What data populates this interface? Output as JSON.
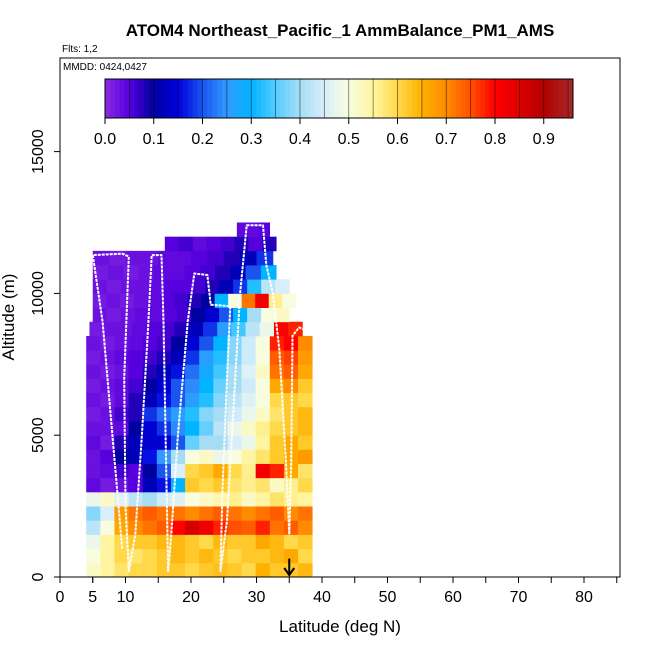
{
  "chart_data": {
    "type": "heatmap",
    "title": "ATOM4 Northeast_Pacific_1 AmmBalance_PM1_AMS",
    "flights_label": "Flts: 1,2",
    "mmdd_label": "MMDD: 0424,0427",
    "xlabel": "Latitude (deg N)",
    "ylabel": "Altitude (m)",
    "xlim": [
      0,
      85
    ],
    "ylim": [
      0,
      17500
    ],
    "x_ticks": [
      {
        "value": 0,
        "label": "0"
      },
      {
        "value": 5,
        "label": "5"
      },
      {
        "value": 10,
        "label": "10"
      },
      {
        "value": 20,
        "label": "20"
      },
      {
        "value": 30,
        "label": "30"
      },
      {
        "value": 40,
        "label": "40"
      },
      {
        "value": 50,
        "label": "50"
      },
      {
        "value": 60,
        "label": "60"
      },
      {
        "value": 70,
        "label": "70"
      },
      {
        "value": 80,
        "label": "80"
      }
    ],
    "x_minor_ticks": [
      5,
      10,
      15,
      20,
      25,
      30,
      35,
      40,
      45,
      50,
      55,
      60,
      65,
      70,
      75,
      80,
      85
    ],
    "y_ticks": [
      {
        "value": 0,
        "label": "0"
      },
      {
        "value": 5000,
        "label": "5000"
      },
      {
        "value": 10000,
        "label": "10000"
      },
      {
        "value": 15000,
        "label": "15000"
      }
    ],
    "colorbar": {
      "range": [
        0,
        0.96
      ],
      "ticks": [
        {
          "value": 0.0,
          "label": "0.0"
        },
        {
          "value": 0.1,
          "label": "0.1"
        },
        {
          "value": 0.2,
          "label": "0.2"
        },
        {
          "value": 0.3,
          "label": "0.3"
        },
        {
          "value": 0.4,
          "label": "0.4"
        },
        {
          "value": 0.5,
          "label": "0.5"
        },
        {
          "value": 0.6,
          "label": "0.6"
        },
        {
          "value": 0.7,
          "label": "0.7"
        },
        {
          "value": 0.8,
          "label": "0.8"
        },
        {
          "value": 0.9,
          "label": "0.9"
        }
      ],
      "stops": [
        {
          "value": 0.0,
          "color": "#8a2be2"
        },
        {
          "value": 0.05,
          "color": "#5500dd"
        },
        {
          "value": 0.1,
          "color": "#0000a0"
        },
        {
          "value": 0.15,
          "color": "#0000dd"
        },
        {
          "value": 0.2,
          "color": "#1a55ee"
        },
        {
          "value": 0.25,
          "color": "#3399ff"
        },
        {
          "value": 0.3,
          "color": "#00b4ff"
        },
        {
          "value": 0.35,
          "color": "#55ccff"
        },
        {
          "value": 0.4,
          "color": "#a6ddf5"
        },
        {
          "value": 0.45,
          "color": "#d8eefa"
        },
        {
          "value": 0.5,
          "color": "#f8fde0"
        },
        {
          "value": 0.55,
          "color": "#fff5a0"
        },
        {
          "value": 0.6,
          "color": "#ffd94a"
        },
        {
          "value": 0.65,
          "color": "#ffb000"
        },
        {
          "value": 0.7,
          "color": "#ff8c00"
        },
        {
          "value": 0.75,
          "color": "#ff5000"
        },
        {
          "value": 0.8,
          "color": "#ff0000"
        },
        {
          "value": 0.85,
          "color": "#dd0000"
        },
        {
          "value": 0.9,
          "color": "#b30000"
        },
        {
          "value": 0.96,
          "color": "#a52a2a"
        }
      ]
    },
    "altitude_bins": [
      {
        "alt": [
          0,
          500
        ],
        "lat": [
          4,
          38.5
        ],
        "values": [
          0.52,
          0.55,
          0.58,
          0.6,
          0.6,
          0.62,
          0.62,
          0.6,
          0.62,
          0.63,
          0.62,
          0.6,
          0.65,
          0.62,
          0.62,
          0.64
        ]
      },
      {
        "alt": [
          500,
          1000
        ],
        "lat": [
          4,
          38.5
        ],
        "values": [
          0.5,
          0.55,
          0.6,
          0.58,
          0.6,
          0.62,
          0.64,
          0.62,
          0.64,
          0.62,
          0.6,
          0.62,
          0.62,
          0.64,
          0.66,
          0.6
        ]
      },
      {
        "alt": [
          1000,
          1500
        ],
        "lat": [
          4,
          38.5
        ],
        "values": [
          0.48,
          0.55,
          0.6,
          0.62,
          0.62,
          0.64,
          0.64,
          0.62,
          0.6,
          0.64,
          0.62,
          0.62,
          0.66,
          0.64,
          0.6,
          0.62
        ]
      },
      {
        "alt": [
          1500,
          2000
        ],
        "lat": [
          4,
          38.5
        ],
        "values": [
          0.42,
          0.5,
          0.66,
          0.7,
          0.72,
          0.74,
          0.8,
          0.86,
          0.82,
          0.78,
          0.75,
          0.74,
          0.78,
          0.72,
          0.74,
          0.7
        ]
      },
      {
        "alt": [
          2000,
          2500
        ],
        "lat": [
          4,
          38.5
        ],
        "values": [
          0.38,
          0.45,
          0.68,
          0.72,
          0.74,
          0.72,
          0.72,
          0.7,
          0.72,
          0.74,
          0.72,
          0.7,
          0.72,
          0.74,
          0.7,
          0.72
        ]
      },
      {
        "alt": [
          2500,
          3000
        ],
        "lat": [
          4,
          38.5
        ],
        "values": [
          0.48,
          0.52,
          0.46,
          0.42,
          0.4,
          0.44,
          0.46,
          0.5,
          0.52,
          0.54,
          0.56,
          0.52,
          0.55,
          0.58,
          0.56,
          0.55
        ]
      },
      {
        "alt": [
          3000,
          3500
        ],
        "lat": [
          4,
          38.5
        ],
        "values": [
          0.04,
          0.02,
          0.03,
          0.05,
          0.12,
          0.16,
          0.3,
          0.62,
          0.6,
          0.62,
          0.58,
          0.56,
          0.58,
          0.52,
          0.56,
          0.6
        ]
      },
      {
        "alt": [
          3500,
          4000
        ],
        "lat": [
          4,
          38.5
        ],
        "values": [
          0.03,
          0.04,
          0.06,
          0.05,
          0.1,
          0.2,
          0.45,
          0.6,
          0.62,
          0.66,
          0.6,
          0.56,
          0.82,
          0.78,
          0.66,
          0.58
        ]
      },
      {
        "alt": [
          4000,
          4500
        ],
        "lat": [
          4,
          38.5
        ],
        "values": [
          0.03,
          0.05,
          0.1,
          0.12,
          0.16,
          0.25,
          0.4,
          0.5,
          0.52,
          0.48,
          0.5,
          0.55,
          0.58,
          0.62,
          0.66,
          0.68
        ]
      },
      {
        "alt": [
          4500,
          5000
        ],
        "lat": [
          4,
          38.5
        ],
        "values": [
          0.04,
          0.02,
          0.08,
          0.12,
          0.14,
          0.14,
          0.2,
          0.36,
          0.4,
          0.4,
          0.45,
          0.48,
          0.55,
          0.62,
          0.66,
          0.62
        ]
      },
      {
        "alt": [
          5000,
          5500
        ],
        "lat": [
          4,
          38.5
        ],
        "values": [
          0.03,
          0.03,
          0.04,
          0.1,
          0.14,
          0.18,
          0.24,
          0.3,
          0.36,
          0.42,
          0.48,
          0.52,
          0.56,
          0.6,
          0.62,
          0.64
        ]
      },
      {
        "alt": [
          5500,
          6000
        ],
        "lat": [
          4,
          38.5
        ],
        "values": [
          0.02,
          0.03,
          0.06,
          0.08,
          0.18,
          0.22,
          0.26,
          0.32,
          0.38,
          0.4,
          0.44,
          0.48,
          0.52,
          0.58,
          0.62,
          0.64
        ]
      },
      {
        "alt": [
          6000,
          6500
        ],
        "lat": [
          4,
          38.5
        ],
        "values": [
          0.03,
          0.02,
          0.04,
          0.08,
          0.12,
          0.16,
          0.2,
          0.26,
          0.32,
          0.38,
          0.42,
          0.46,
          0.5,
          0.6,
          0.62,
          0.6
        ]
      },
      {
        "alt": [
          6500,
          7000
        ],
        "lat": [
          4,
          38.5
        ],
        "values": [
          0.02,
          0.03,
          0.04,
          0.06,
          0.1,
          0.14,
          0.2,
          0.24,
          0.3,
          0.36,
          0.4,
          0.44,
          0.5,
          0.66,
          0.7,
          0.62
        ]
      },
      {
        "alt": [
          7000,
          7500
        ],
        "lat": [
          4,
          38.5
        ],
        "values": [
          0.03,
          0.02,
          0.03,
          0.05,
          0.08,
          0.12,
          0.16,
          0.22,
          0.28,
          0.34,
          0.4,
          0.46,
          0.52,
          0.72,
          0.74,
          0.66
        ]
      },
      {
        "alt": [
          7500,
          8000
        ],
        "lat": [
          4,
          38.5
        ],
        "values": [
          0.02,
          0.03,
          0.04,
          0.05,
          0.06,
          0.08,
          0.12,
          0.18,
          0.26,
          0.32,
          0.38,
          0.44,
          0.5,
          0.74,
          0.76,
          0.68
        ]
      },
      {
        "alt": [
          8000,
          8500
        ],
        "lat": [
          4,
          38.5
        ],
        "values": [
          0.03,
          0.02,
          0.03,
          0.04,
          0.05,
          0.06,
          0.1,
          0.14,
          0.2,
          0.3,
          0.38,
          0.44,
          0.5,
          0.78,
          0.8,
          0.7
        ]
      },
      {
        "alt": [
          8500,
          9000
        ],
        "lat": [
          4.5,
          37
        ],
        "values": [
          0.02,
          0.03,
          0.03,
          0.04,
          0.05,
          0.06,
          0.08,
          0.12,
          0.18,
          0.26,
          0.34,
          0.42,
          0.48,
          0.8,
          0.78
        ]
      },
      {
        "alt": [
          9000,
          9500
        ],
        "lat": [
          5,
          35
        ],
        "values": [
          0.03,
          0.02,
          0.03,
          0.04,
          0.04,
          0.05,
          0.06,
          0.1,
          0.14,
          0.2,
          0.3,
          0.4,
          0.5,
          0.52
        ]
      },
      {
        "alt": [
          9500,
          10000
        ],
        "lat": [
          5,
          36
        ],
        "values": [
          0.02,
          0.03,
          0.02,
          0.03,
          0.04,
          0.05,
          0.06,
          0.08,
          0.1,
          0.3,
          0.5,
          0.72,
          0.82,
          0.56,
          0.5
        ]
      },
      {
        "alt": [
          10000,
          10500
        ],
        "lat": [
          5,
          35
        ],
        "values": [
          0.03,
          0.02,
          0.03,
          0.03,
          0.04,
          0.05,
          0.05,
          0.06,
          0.08,
          0.12,
          0.18,
          0.32,
          0.42,
          0.45
        ]
      },
      {
        "alt": [
          10500,
          11000
        ],
        "lat": [
          5,
          33
        ],
        "values": [
          0.02,
          0.03,
          0.02,
          0.03,
          0.04,
          0.04,
          0.05,
          0.06,
          0.08,
          0.12,
          0.2,
          0.3
        ]
      },
      {
        "alt": [
          11000,
          11500
        ],
        "lat": [
          5,
          32.5
        ],
        "values": [
          0.03,
          0.02,
          0.03,
          0.03,
          0.04,
          0.04,
          0.05,
          0.06,
          0.08,
          0.12,
          0.18
        ]
      },
      {
        "alt": [
          11500,
          12000
        ],
        "lat": [
          16,
          33
        ],
        "values": [
          0.05,
          0.06,
          0.04,
          0.05,
          0.06,
          0.08,
          0.05,
          0.08
        ]
      },
      {
        "alt": [
          12000,
          12500
        ],
        "lat": [
          27,
          32
        ],
        "values": [
          0.04,
          0.04,
          0.05
        ]
      }
    ],
    "flight_track": [
      [
        9.5,
        1000
      ],
      [
        8,
        5000
      ],
      [
        6.5,
        9000
      ],
      [
        5,
        11350
      ],
      [
        9.5,
        11400
      ],
      [
        10.5,
        11300
      ],
      [
        9.8,
        7000
      ],
      [
        10,
        2500
      ],
      [
        10.5,
        200
      ],
      [
        11.5,
        1500
      ],
      [
        12.5,
        5000
      ],
      [
        13.5,
        9000
      ],
      [
        14,
        11350
      ],
      [
        15.5,
        11350
      ],
      [
        15.8,
        9000
      ],
      [
        16.2,
        4000
      ],
      [
        16.5,
        200
      ],
      [
        17,
        1500
      ],
      [
        18,
        5000
      ],
      [
        19.5,
        9000
      ],
      [
        20.5,
        10700
      ],
      [
        22.5,
        10650
      ],
      [
        23,
        9600
      ],
      [
        26,
        9550
      ],
      [
        25.5,
        7000
      ],
      [
        24.8,
        3000
      ],
      [
        24.5,
        200
      ],
      [
        25.5,
        2000
      ],
      [
        26.5,
        6000
      ],
      [
        27.5,
        10000
      ],
      [
        28.5,
        12400
      ],
      [
        31,
        12400
      ],
      [
        31.5,
        11000
      ],
      [
        32.5,
        10000
      ],
      [
        33.5,
        8000
      ],
      [
        34.5,
        4000
      ],
      [
        35,
        1500
      ],
      [
        35.3,
        4000
      ],
      [
        35.5,
        8500
      ],
      [
        36.5,
        8800
      ],
      [
        37.5,
        8700
      ]
    ],
    "arrow": {
      "lat": 35,
      "alt_top": 650,
      "alt_bottom": 0
    }
  }
}
